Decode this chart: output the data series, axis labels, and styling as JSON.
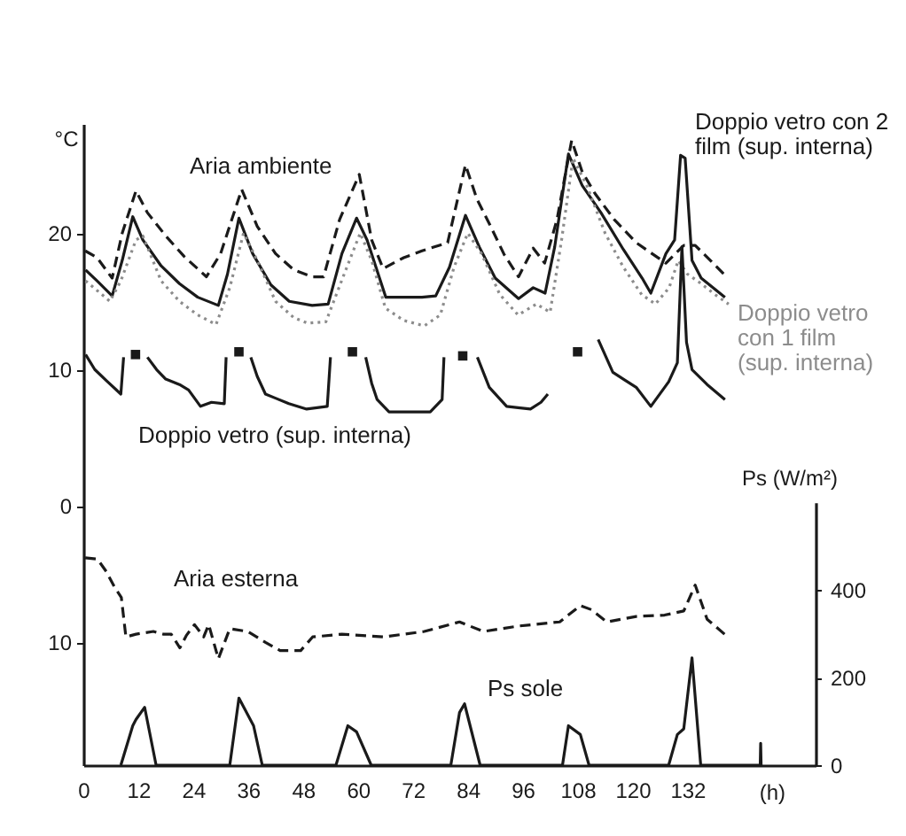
{
  "chart_data": {
    "type": "line",
    "xlabel": "(h)",
    "ylabel": "°C",
    "y2label": "Ps (W/m²)",
    "xlim": [
      0,
      160
    ],
    "xticks": [
      0,
      12,
      24,
      36,
      48,
      60,
      72,
      84,
      96,
      108,
      120,
      132
    ],
    "ylim": [
      -19,
      28
    ],
    "yticks": [
      20,
      10,
      0,
      {
        "value": -10,
        "label": "10"
      }
    ],
    "y2lim": [
      0,
      600
    ],
    "y2ticks": [
      0,
      200,
      400
    ],
    "grid": false,
    "series": [
      {
        "name": "Aria ambiente",
        "line_style": "dashed",
        "color": "#1a1a1a",
        "x": [
          0.4,
          3,
          6.3,
          8.5,
          11.5,
          14,
          18,
          22,
          26.9,
          30,
          34.6,
          38,
          42,
          46,
          50,
          52.5,
          56,
          60.3,
          63,
          65.5,
          70,
          74,
          79.6,
          83.5,
          86,
          88.7,
          92,
          95.1,
          98.3,
          100.8,
          103.5,
          106.7,
          109,
          111.8,
          116,
          120.8,
          127.3,
          131.2,
          133.7,
          137.6,
          140.8
        ],
        "values": [
          18.7,
          18.2,
          16.7,
          20,
          23.1,
          21.5,
          19.8,
          18.3,
          16.8,
          18.5,
          23.2,
          20.5,
          18.5,
          17.3,
          16.8,
          16.8,
          21,
          24.3,
          19.5,
          17.4,
          18.2,
          18.7,
          19.3,
          25,
          22.5,
          20.7,
          18.4,
          16.8,
          18.9,
          17.8,
          21,
          26.8,
          24.5,
          22.9,
          21,
          19.3,
          17.8,
          19.1,
          19.1,
          17.8,
          16.7
        ]
      },
      {
        "name": "Doppio vetro con 2 film (sup. interna)",
        "line_style": "solid",
        "color": "#1a1a1a",
        "x": [
          0.5,
          3,
          6.3,
          8.5,
          10.8,
          13,
          17,
          21,
          25,
          29.5,
          31.5,
          34,
          37,
          41,
          45,
          50,
          53.5,
          56.5,
          59.7,
          62,
          66.1,
          70,
          74,
          77,
          80,
          83.5,
          86.5,
          90,
          95.1,
          98.3,
          100.9,
          103,
          106,
          109,
          113.1,
          118,
          122.1,
          124,
          127.3,
          129.2,
          130.5,
          131.5,
          133,
          135,
          140.2
        ],
        "values": [
          17.3,
          16.5,
          15.4,
          18,
          21.2,
          19.5,
          17.6,
          16.3,
          15.3,
          14.7,
          17,
          21.1,
          18.5,
          16.2,
          15,
          14.7,
          14.8,
          18.5,
          21.1,
          19.5,
          15.3,
          15.3,
          15.3,
          15.4,
          17.5,
          21.3,
          19,
          16.7,
          15.2,
          16,
          15.6,
          19,
          25.8,
          23.5,
          21.5,
          18.8,
          16.7,
          15.6,
          18.5,
          19.5,
          25.7,
          25.5,
          18,
          16.7,
          15.3
        ]
      },
      {
        "name": "Doppio vetro con 1 film (sup. interna)",
        "line_style": "dotted",
        "color": "#8c8c8c",
        "x": [
          0.5,
          3,
          5.8,
          8.2,
          11.5,
          13,
          17,
          21,
          25,
          29,
          32,
          35,
          38,
          42,
          46,
          49,
          53,
          57,
          60.5,
          63,
          66,
          70,
          74.5,
          78,
          81,
          84,
          87,
          91,
          95,
          99,
          102,
          104.5,
          107,
          110,
          114,
          118,
          122,
          125,
          128,
          130,
          132,
          135,
          138,
          141
        ],
        "values": [
          16.5,
          15.8,
          15,
          16.5,
          19.5,
          19.8,
          16.5,
          15,
          14,
          13.3,
          16,
          20,
          18,
          15,
          13.8,
          13.4,
          13.5,
          17,
          20,
          18,
          14.5,
          13.6,
          13.2,
          14,
          17.5,
          20,
          18.5,
          15.5,
          14,
          14.8,
          14.2,
          19.5,
          25.5,
          23.5,
          20,
          17.5,
          15.5,
          14.8,
          16,
          18,
          17,
          16.3,
          15.5,
          14.8
        ]
      },
      {
        "name": "Doppio vetro (sup. interna)",
        "line_style": "solid",
        "color": "#1a1a1a",
        "x": [
          0.5,
          2.5,
          5,
          8.2,
          8.8,
          11.4,
          14,
          16,
          18,
          21,
          23,
          25.6,
          28,
          30.8,
          31.2,
          34,
          36.6,
          38,
          39.8,
          42,
          44.9,
          48.8,
          53.3,
          54,
          58.8,
          61.7,
          63,
          64.2,
          66.8,
          72,
          75.8,
          78.4,
          78.8,
          82.9,
          86.1,
          88.7,
          92.5,
          95,
          97.7,
          100,
          101.5,
          107,
          112.5,
          115.7,
          118,
          120.8,
          124,
          127.9,
          129.8,
          130.8,
          131.8,
          133,
          136.3,
          140.2
        ],
        "values": [
          11.1,
          10,
          9.2,
          8.2,
          10.9,
          null,
          10.9,
          10,
          9.3,
          8.9,
          8.5,
          7.3,
          7.6,
          7.5,
          10.9,
          null,
          10.9,
          9.5,
          8.2,
          7.9,
          7.5,
          7.1,
          7.3,
          10.9,
          null,
          10.9,
          9,
          7.8,
          6.9,
          6.9,
          6.9,
          7.8,
          10.9,
          null,
          10.9,
          8.7,
          7.3,
          7.2,
          7.1,
          7.6,
          8.2,
          null,
          12.2,
          9.8,
          9.3,
          8.7,
          7.3,
          9.1,
          10.5,
          19,
          12,
          10,
          8.9,
          7.8
        ]
      },
      {
        "type": "scatter",
        "marker": "square",
        "color": "#1a1a1a",
        "x": [
          11.4,
          34,
          58.8,
          82.9,
          108
        ],
        "values": [
          11.1,
          11.3,
          11.3,
          11,
          11.3
        ]
      },
      {
        "name": "Aria esterna",
        "line_style": "dashed",
        "color": "#1a1a1a",
        "x": [
          0.4,
          3.1,
          5,
          6.9,
          8.3,
          9.3,
          11.5,
          15.3,
          17.5,
          19.2,
          21.1,
          22.5,
          24.3,
          26.3,
          27.4,
          29.5,
          32,
          35.9,
          39.8,
          43,
          47.5,
          50.1,
          56.5,
          65.5,
          74.5,
          82.2,
          87.4,
          95.1,
          104.1,
          108.6,
          111,
          114.4,
          120.8,
          127,
          131.2,
          133.7,
          136.3,
          140.8
        ],
        "values": [
          -3.8,
          -3.9,
          -4.8,
          -6,
          -6.7,
          -9.6,
          -9.4,
          -9.2,
          -9.4,
          -9.4,
          -10.4,
          -9.5,
          -8.7,
          -9.6,
          -8.7,
          -11.2,
          -9,
          -9.2,
          -10,
          -10.6,
          -10.6,
          -9.6,
          -9.4,
          -9.6,
          -9.2,
          -8.5,
          -9.2,
          -8.8,
          -8.5,
          -7.3,
          -7.6,
          -8.5,
          -8.1,
          -8,
          -7.7,
          -5.8,
          -8.3,
          -9.6
        ]
      },
      {
        "name": "Ps sole",
        "line_style": "solid",
        "axis": "y2",
        "color": "#1a1a1a",
        "x": [
          8.2,
          10.8,
          11.5,
          13.4,
          15.9,
          32,
          34,
          37.2,
          39.1,
          55.2,
          57.8,
          59.7,
          62.9,
          80.3,
          82.2,
          83.3,
          86.7,
          104.7,
          106,
          108.6,
          110.5,
          127.9,
          129.8,
          131.2,
          133,
          134.9,
          147.9,
          148,
          148.1
        ],
        "values": [
          0,
          90,
          104,
          132,
          0,
          0,
          153,
          90,
          0,
          0,
          90,
          76,
          0,
          0,
          120,
          140,
          0,
          0,
          90,
          70,
          0,
          0,
          70,
          83,
          245,
          0,
          0,
          50,
          0
        ]
      }
    ]
  }
}
